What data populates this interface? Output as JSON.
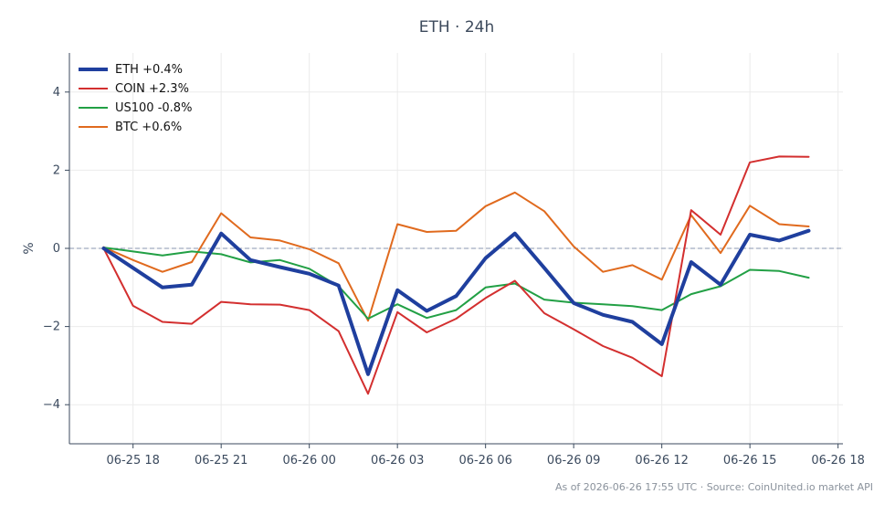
{
  "footer": "As of 2026-06-26 17:55 UTC · Source: CoinUnited.io market API",
  "chart_data": {
    "type": "line",
    "title": "ETH · 24h",
    "xlabel": "",
    "ylabel": "%",
    "x": [
      "06-25 17:00",
      "06-25 18:00",
      "06-25 19:00",
      "06-25 20:00",
      "06-25 21:00",
      "06-25 22:00",
      "06-25 23:00",
      "06-26 00:00",
      "06-26 01:00",
      "06-26 02:00",
      "06-26 03:00",
      "06-26 04:00",
      "06-26 05:00",
      "06-26 06:00",
      "06-26 07:00",
      "06-26 08:00",
      "06-26 09:00",
      "06-26 10:00",
      "06-26 11:00",
      "06-26 12:00",
      "06-26 13:00",
      "06-26 14:00",
      "06-26 15:00",
      "06-26 16:00",
      "06-26 17:00"
    ],
    "x_range": [
      "06-25 15:50",
      "06-26 18:10"
    ],
    "x_tick_labels": [
      "06-25 18",
      "06-25 21",
      "06-26 00",
      "06-26 03",
      "06-26 06",
      "06-26 09",
      "06-26 12",
      "06-26 15",
      "06-26 18"
    ],
    "ylim": [
      -5,
      5
    ],
    "y_ticks": [
      -4,
      -2,
      0,
      2,
      4
    ],
    "y_tick_labels": [
      "−4",
      "−2",
      "0",
      "2",
      "4"
    ],
    "grid": true,
    "reference_line": 0,
    "legend_position": "top-left",
    "series": [
      {
        "name": "ETH +0.4%",
        "color": "#1f3f9e",
        "values": [
          0.0,
          -0.5,
          -1.0,
          -0.93,
          0.38,
          -0.3,
          -0.48,
          -0.65,
          -0.95,
          -3.22,
          -1.07,
          -1.6,
          -1.22,
          -0.25,
          0.38,
          -0.5,
          -1.4,
          -1.7,
          -1.88,
          -2.45,
          -0.35,
          -0.93,
          0.35,
          0.2,
          0.45
        ]
      },
      {
        "name": "COIN +2.3%",
        "color": "#d32f2f",
        "values": [
          0.0,
          -1.47,
          -1.88,
          -1.93,
          -1.37,
          -1.43,
          -1.44,
          -1.58,
          -2.12,
          -3.72,
          -1.63,
          -2.15,
          -1.8,
          -1.27,
          -0.83,
          -1.66,
          -2.07,
          -2.5,
          -2.8,
          -3.27,
          0.98,
          0.35,
          2.2,
          2.35,
          2.34
        ]
      },
      {
        "name": "US100 -0.8%",
        "color": "#22a045",
        "values": [
          0.02,
          -0.08,
          -0.18,
          -0.08,
          -0.15,
          -0.36,
          -0.3,
          -0.52,
          -0.97,
          -1.8,
          -1.43,
          -1.78,
          -1.58,
          -1.0,
          -0.9,
          -1.31,
          -1.39,
          -1.43,
          -1.48,
          -1.58,
          -1.17,
          -0.97,
          -0.55,
          -0.58,
          -0.75
        ]
      },
      {
        "name": "BTC +0.6%",
        "color": "#e06a1e",
        "values": [
          0.03,
          -0.3,
          -0.6,
          -0.35,
          0.9,
          0.28,
          0.2,
          -0.02,
          -0.38,
          -1.85,
          0.62,
          0.42,
          0.45,
          1.08,
          1.43,
          0.95,
          0.05,
          -0.6,
          -0.43,
          -0.8,
          0.85,
          -0.12,
          1.09,
          0.62,
          0.56
        ]
      }
    ]
  }
}
